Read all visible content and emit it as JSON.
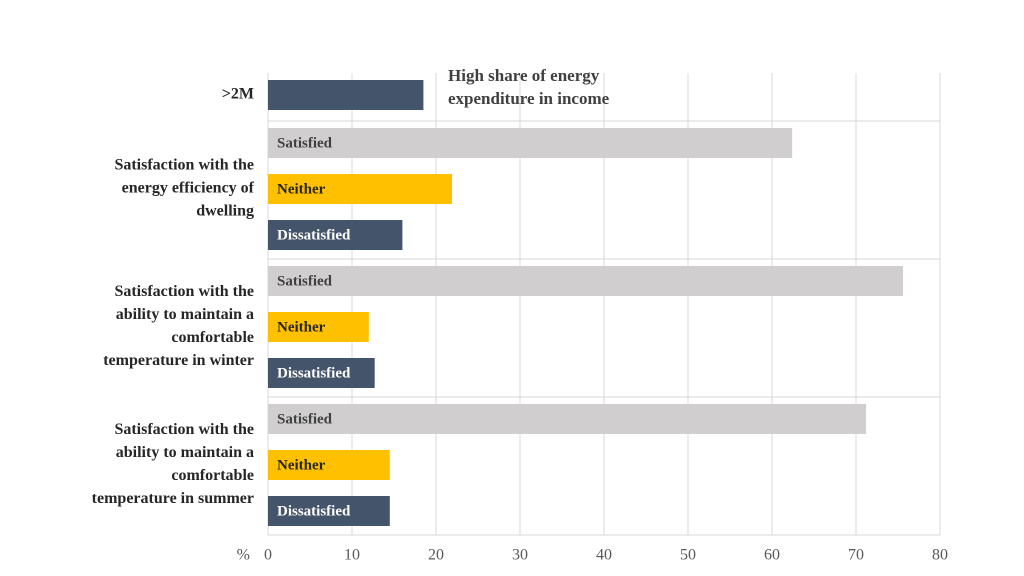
{
  "chart_data": {
    "type": "bar",
    "orientation": "horizontal",
    "xlabel": "%",
    "xlim": [
      0,
      80
    ],
    "xticks": [
      0,
      10,
      20,
      30,
      40,
      50,
      60,
      70,
      80
    ],
    "grid": true,
    "annotation": [
      "High share of energy",
      "expenditure in income"
    ],
    "groups": [
      {
        "label": [
          ">2M"
        ],
        "values": [
          18.5
        ],
        "colors": [
          "#44546a"
        ]
      },
      {
        "label": [
          "Satisfaction with the",
          "energy efficiency of",
          "dwelling"
        ],
        "categories": [
          "Satisfied",
          "Neither",
          "Dissatisfied"
        ],
        "values": [
          62.4,
          21.9,
          16
        ],
        "colors": [
          "#d0cece",
          "#ffc000",
          "#44546a"
        ]
      },
      {
        "label": [
          "Satisfaction with the",
          "ability to maintain a",
          "comfortable",
          "temperature in winter"
        ],
        "categories": [
          "Satisfied",
          "Neither",
          "Dissatisfied"
        ],
        "values": [
          75.6,
          12,
          12.7
        ],
        "colors": [
          "#d0cece",
          "#ffc000",
          "#44546a"
        ]
      },
      {
        "label": [
          "Satisfaction with the",
          "ability to maintain a",
          "comfortable",
          "temperature in summer"
        ],
        "categories": [
          "Satisfied",
          "Neither",
          "Dissatisfied"
        ],
        "values": [
          71.2,
          14.5,
          14.5
        ],
        "colors": [
          "#d0cece",
          "#ffc000",
          "#44546a"
        ]
      }
    ]
  }
}
